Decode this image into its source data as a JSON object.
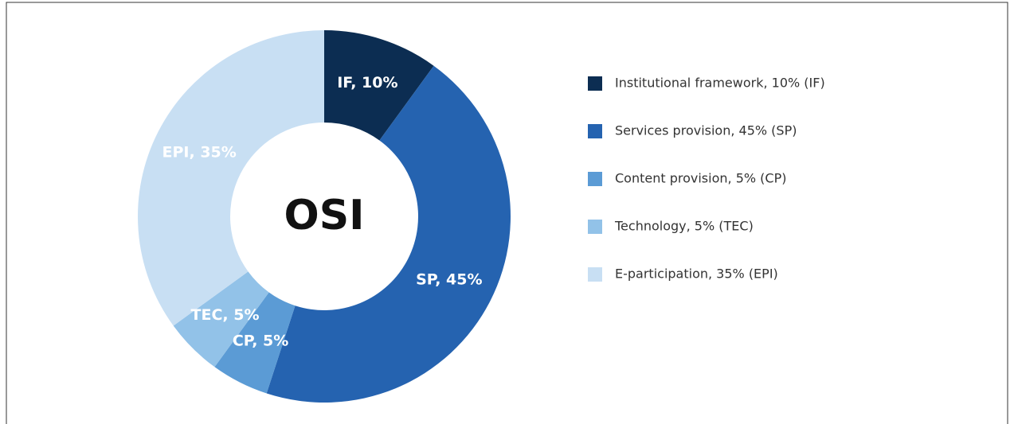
{
  "chart_data": {
    "type": "pie",
    "center_text": "OSI",
    "categories": [
      "Institutional framework, 10% (IF)",
      "Services provision, 45% (SP)",
      "Content provision, 5% (CP)",
      "Technology, 5% (TEC)",
      "E-participation, 35% (EPI)"
    ],
    "values": [
      10,
      45,
      5,
      5,
      35
    ],
    "value_labels": [
      "IF, 10%",
      "SP, 45%",
      "CP, 5%",
      "TEC, 5%",
      "EPI, 35%"
    ],
    "colors": [
      "#0c2d52",
      "#2563b0",
      "#5b9bd5",
      "#92c2e8",
      "#c8dff3"
    ],
    "donut": true
  }
}
